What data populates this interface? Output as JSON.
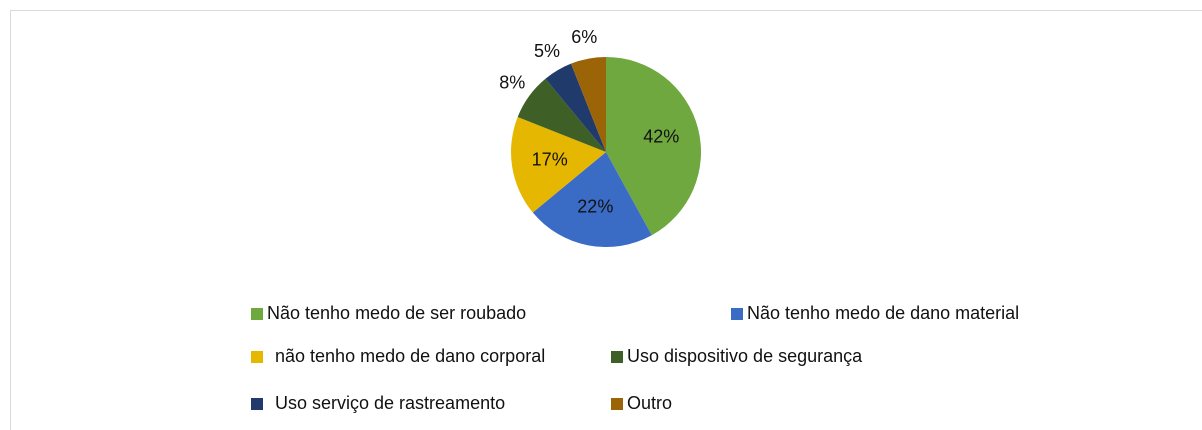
{
  "chart_data": {
    "type": "pie",
    "categories": [
      "Não tenho medo de ser roubado",
      "Não tenho medo de dano material",
      "não tenho medo de dano corporal",
      "Uso dispositivo de segurança",
      "Uso serviço de rastreamento",
      "Outro"
    ],
    "values": [
      42,
      22,
      17,
      8,
      5,
      6
    ],
    "value_labels": [
      "42%",
      "22%",
      "17%",
      "8%",
      "5%",
      "6%"
    ],
    "colors": [
      "#6fa83e",
      "#3a6cc6",
      "#e6b700",
      "#3e5f26",
      "#1f3a6b",
      "#9b6406"
    ],
    "legend": "bottom"
  }
}
